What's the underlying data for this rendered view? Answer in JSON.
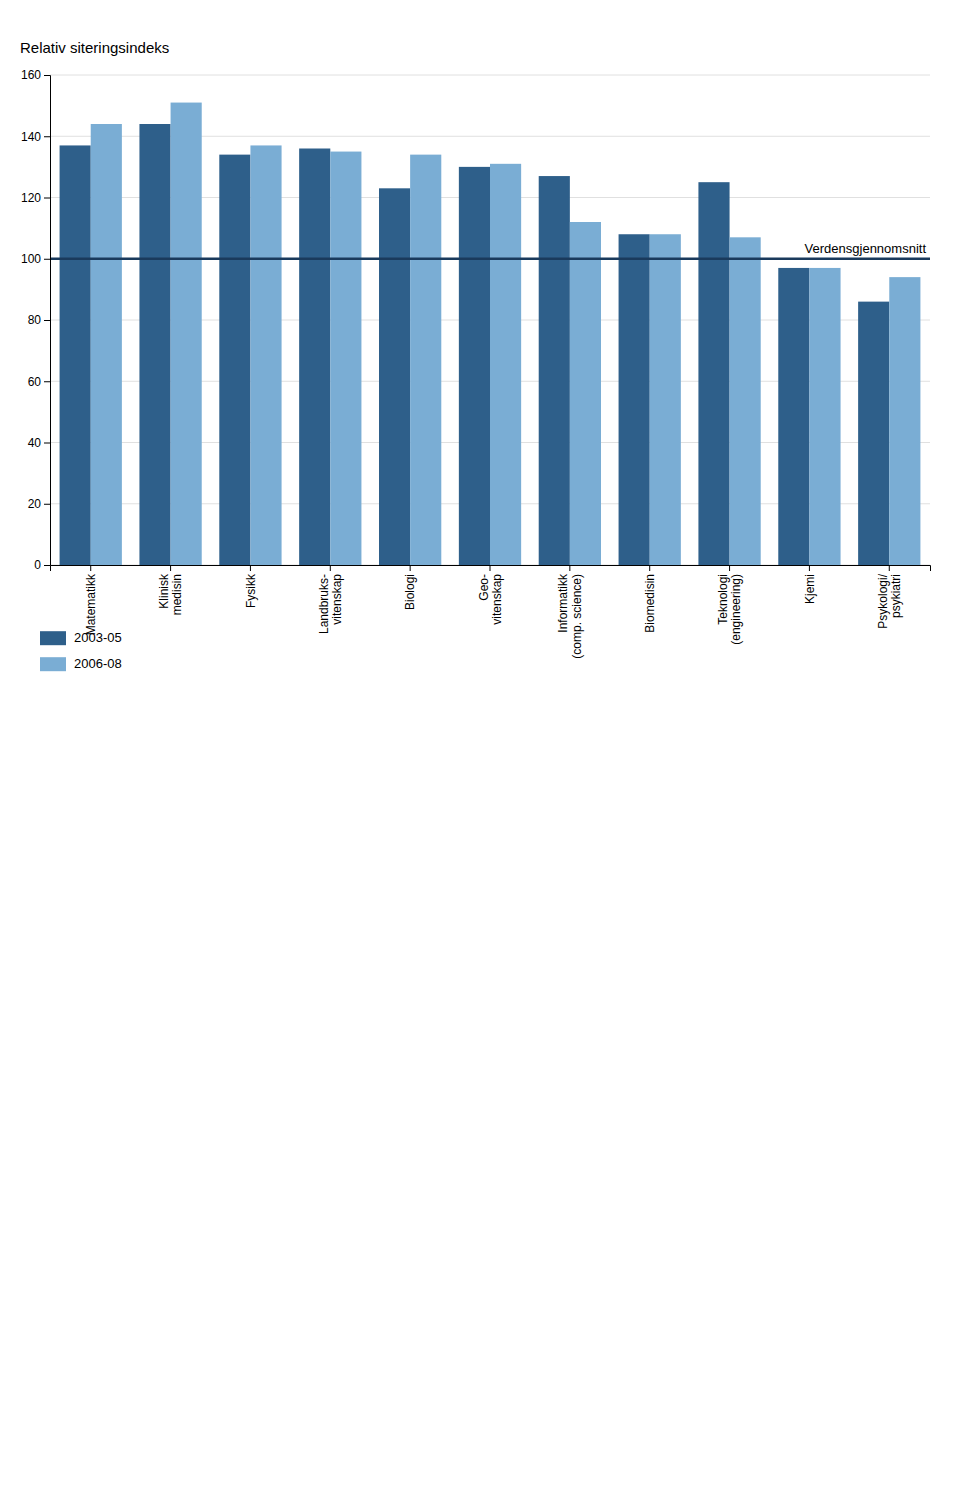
{
  "chart_data": {
    "type": "bar",
    "ylabel": "Relativ siteringsindeks",
    "categories": [
      "Matematikk",
      "Klinisk\nmedisin",
      "Fysikk",
      "Landbruks-\nvitenskap",
      "Biologi",
      "Geo-\nvitenskap",
      "Informatikk\n(comp. science)",
      "Biomedisin",
      "Teknologi\n(engineering)",
      "Kjemi",
      "Psykologi/\npsykiatri"
    ],
    "series": [
      {
        "name": "2003-05",
        "color": "#2e5f8a",
        "values": [
          137,
          144,
          134,
          136,
          123,
          130,
          127,
          108,
          125,
          97,
          86
        ]
      },
      {
        "name": "2006-08",
        "color": "#7aadd4",
        "values": [
          144,
          151,
          137,
          135,
          134,
          131,
          112,
          108,
          107,
          97,
          94
        ]
      }
    ],
    "annotations": [
      {
        "type": "hline",
        "y": 100,
        "text": "Verdensgjennomsnitt",
        "color": "#1a3a5c"
      }
    ],
    "ylim": [
      0,
      160
    ],
    "yticks": [
      0,
      20,
      40,
      60,
      80,
      100,
      120,
      140,
      160
    ],
    "grid": true,
    "legend": "bottom"
  }
}
